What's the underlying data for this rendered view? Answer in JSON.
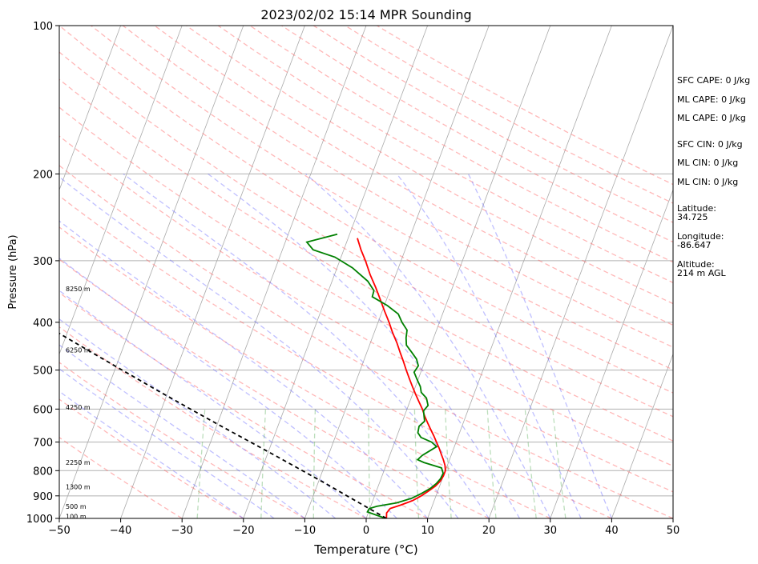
{
  "chart_data": {
    "type": "line",
    "title": "2023/02/02 15:14 MPR Sounding",
    "xlabel": "Temperature (°C)",
    "ylabel": "Pressure (hPa)",
    "xlim": [
      -50,
      50
    ],
    "ylim": [
      1000,
      100
    ],
    "y_scale": "log",
    "x_ticks": [
      -50,
      -40,
      -30,
      -20,
      -10,
      0,
      10,
      20,
      30,
      40,
      50
    ],
    "y_ticks": [
      100,
      200,
      300,
      400,
      500,
      600,
      700,
      800,
      900,
      1000
    ],
    "grid": "horizontal",
    "height_labels": [
      {
        "label": "100 m",
        "p": 990
      },
      {
        "label": "500 m",
        "p": 945
      },
      {
        "label": "1300 m",
        "p": 862
      },
      {
        "label": "2250 m",
        "p": 770
      },
      {
        "label": "4250 m",
        "p": 595
      },
      {
        "label": "6250 m",
        "p": 455
      },
      {
        "label": "8250 m",
        "p": 342
      }
    ],
    "series": [
      {
        "color": "#ff0000",
        "points": [
          [
            1000,
            3.3
          ],
          [
            975,
            3.0
          ],
          [
            955,
            3.3
          ],
          [
            940,
            4.8
          ],
          [
            920,
            6.5
          ],
          [
            900,
            7.6
          ],
          [
            880,
            8.5
          ],
          [
            860,
            9.3
          ],
          [
            840,
            9.8
          ],
          [
            820,
            10.0
          ],
          [
            800,
            10.0
          ],
          [
            780,
            9.6
          ],
          [
            760,
            9.0
          ],
          [
            740,
            8.3
          ],
          [
            720,
            7.6
          ],
          [
            700,
            6.8
          ],
          [
            680,
            6.0
          ],
          [
            660,
            5.1
          ],
          [
            640,
            4.2
          ],
          [
            620,
            3.3
          ],
          [
            600,
            2.5
          ],
          [
            580,
            1.5
          ],
          [
            560,
            0.5
          ],
          [
            540,
            -0.5
          ],
          [
            520,
            -1.5
          ],
          [
            500,
            -2.5
          ],
          [
            480,
            -3.5
          ],
          [
            460,
            -4.6
          ],
          [
            440,
            -5.7
          ],
          [
            420,
            -7.0
          ],
          [
            400,
            -8.2
          ],
          [
            380,
            -9.6
          ],
          [
            360,
            -11.0
          ],
          [
            340,
            -12.5
          ],
          [
            320,
            -14.2
          ],
          [
            300,
            -15.8
          ],
          [
            285,
            -17.2
          ],
          [
            270,
            -18.5
          ]
        ]
      },
      {
        "color": "#008000",
        "points": [
          [
            1000,
            3.2
          ],
          [
            985,
            1.5
          ],
          [
            970,
            -0.2
          ],
          [
            955,
            -0.1
          ],
          [
            945,
            1.0
          ],
          [
            930,
            4.0
          ],
          [
            910,
            6.2
          ],
          [
            890,
            7.5
          ],
          [
            870,
            8.6
          ],
          [
            850,
            9.3
          ],
          [
            830,
            9.7
          ],
          [
            810,
            9.8
          ],
          [
            790,
            9.2
          ],
          [
            770,
            6.0
          ],
          [
            760,
            4.8
          ],
          [
            745,
            5.3
          ],
          [
            730,
            6.2
          ],
          [
            715,
            7.1
          ],
          [
            700,
            6.0
          ],
          [
            685,
            4.0
          ],
          [
            670,
            3.2
          ],
          [
            650,
            3.0
          ],
          [
            635,
            3.6
          ],
          [
            620,
            3.2
          ],
          [
            605,
            2.8
          ],
          [
            590,
            3.2
          ],
          [
            570,
            2.5
          ],
          [
            555,
            1.3
          ],
          [
            540,
            0.8
          ],
          [
            520,
            -0.3
          ],
          [
            505,
            -1.1
          ],
          [
            490,
            -0.8
          ],
          [
            475,
            -1.5
          ],
          [
            460,
            -2.7
          ],
          [
            445,
            -4.0
          ],
          [
            430,
            -4.5
          ],
          [
            415,
            -4.8
          ],
          [
            400,
            -6.1
          ],
          [
            385,
            -7.2
          ],
          [
            370,
            -9.5
          ],
          [
            355,
            -12.5
          ],
          [
            345,
            -12.6
          ],
          [
            330,
            -14.2
          ],
          [
            310,
            -17.5
          ],
          [
            295,
            -21.0
          ],
          [
            285,
            -25.0
          ],
          [
            275,
            -26.5
          ],
          [
            265,
            -22.0
          ]
        ]
      },
      {
        "color": "#000000",
        "dashed": true,
        "points": [
          [
            1000,
            3.3
          ],
          [
            950,
            -0.5
          ],
          [
            900,
            -4.5
          ],
          [
            850,
            -8.7
          ],
          [
            800,
            -13.3
          ],
          [
            750,
            -18.2
          ],
          [
            700,
            -23.5
          ],
          [
            650,
            -29.2
          ],
          [
            600,
            -35.3
          ],
          [
            550,
            -41.8
          ],
          [
            500,
            -48.8
          ],
          [
            450,
            -56.5
          ],
          [
            400,
            -65.0
          ],
          [
            350,
            -74.5
          ],
          [
            300,
            -85.0
          ],
          [
            265,
            -93.0
          ]
        ]
      }
    ],
    "stats": {
      "sfc_cape": "SFC CAPE: 0 J/kg",
      "ml_cape_1": "ML CAPE: 0 J/kg",
      "ml_cape_2": "ML CAPE: 0 J/kg",
      "sfc_cin": "SFC CIN: 0 J/kg",
      "ml_cin_1": "ML CIN: 0 J/kg",
      "ml_cin_2": "ML CIN: 0 J/kg",
      "latitude_label": "Latitude:",
      "latitude_value": "34.725",
      "longitude_label": "Longitude:",
      "longitude_value": "-86.647",
      "altitude_label": "Altitude:",
      "altitude_value": "214 m AGL"
    }
  }
}
